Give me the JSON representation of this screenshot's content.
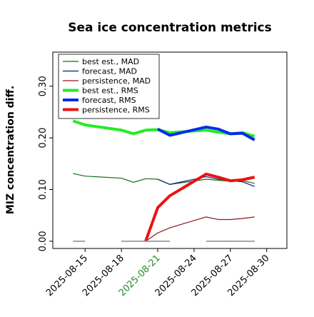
{
  "chart_data": {
    "type": "line",
    "title": "Sea ice concentration metrics",
    "ylabel": "MIZ concentration diff.",
    "x": [
      "2025-08-14",
      "2025-08-15",
      "2025-08-18",
      "2025-08-19",
      "2025-08-20",
      "2025-08-21",
      "2025-08-22",
      "2025-08-25",
      "2025-08-26",
      "2025-08-27",
      "2025-08-28",
      "2025-08-29"
    ],
    "series": [
      {
        "name": "best est., MAD",
        "color": "#1a6b1a",
        "width": 1.2,
        "values": [
          0.131,
          0.126,
          0.122,
          0.114,
          0.121,
          0.12,
          0.11,
          0.12,
          0.118,
          0.116,
          0.117,
          0.112
        ]
      },
      {
        "name": "forecast,  MAD",
        "color": "#0b1f7a",
        "width": 1.2,
        "values": [
          null,
          null,
          null,
          null,
          null,
          0.12,
          0.11,
          0.125,
          0.12,
          0.117,
          0.115,
          0.106
        ]
      },
      {
        "name": "persistence, MAD",
        "color": "#8b1a1a",
        "width": 1.2,
        "values": [
          null,
          null,
          null,
          null,
          0.0,
          0.016,
          0.026,
          0.047,
          0.042,
          0.042,
          0.044,
          0.047
        ]
      },
      {
        "name": "best est., RMS",
        "color": "#22ee22",
        "width": 4,
        "values": [
          0.233,
          0.225,
          0.215,
          0.208,
          0.215,
          0.216,
          0.21,
          0.215,
          0.211,
          0.208,
          0.21,
          0.203
        ]
      },
      {
        "name": "forecast,  RMS",
        "color": "#0a2aee",
        "width": 4,
        "values": [
          null,
          null,
          null,
          null,
          null,
          0.217,
          0.205,
          0.221,
          0.217,
          0.208,
          0.209,
          0.196
        ]
      },
      {
        "name": "persistence, RMS",
        "color": "#ee1111",
        "width": 4,
        "values": [
          null,
          null,
          null,
          null,
          0.0,
          0.065,
          0.088,
          0.13,
          0.124,
          0.117,
          0.119,
          0.124
        ]
      },
      {
        "color": "#888888",
        "width": 1.5,
        "x": [
          "2025-08-14",
          "2025-08-15",
          "2025-08-16",
          "2025-08-18",
          "2025-08-19",
          "2025-08-20",
          "2025-08-21",
          "2025-08-22",
          "2025-08-23",
          "2025-08-25",
          "2025-08-26",
          "2025-08-27",
          "2025-08-28",
          "2025-08-29"
        ],
        "values": [
          0,
          0,
          null,
          0,
          0,
          0,
          0,
          0,
          null,
          0,
          0,
          0,
          0,
          0
        ]
      }
    ],
    "xlim": [
      "2025-08-12T08:00",
      "2025-08-31T16:00"
    ],
    "xticks": [
      {
        "value": "2025-08-15",
        "label": "2025-08-15"
      },
      {
        "value": "2025-08-18",
        "label": "2025-08-18"
      },
      {
        "value": "2025-08-21",
        "label": "2025-08-21"
      },
      {
        "value": "2025-08-24",
        "label": "2025-08-24"
      },
      {
        "value": "2025-08-27",
        "label": "2025-08-27"
      },
      {
        "value": "2025-08-30",
        "label": "2025-08-30"
      }
    ],
    "xtick_colors": [
      "#000000",
      "#000000",
      "#228b22",
      "#000000",
      "#000000",
      "#000000"
    ],
    "ylim": [
      -0.014,
      0.366
    ],
    "yticks": [
      {
        "value": 0,
        "label": "0.00"
      },
      {
        "value": 0.1,
        "label": "0.10"
      },
      {
        "value": 0.2,
        "label": "0.20"
      },
      {
        "value": 0.3,
        "label": "0.30"
      }
    ],
    "legend": "upper left"
  }
}
